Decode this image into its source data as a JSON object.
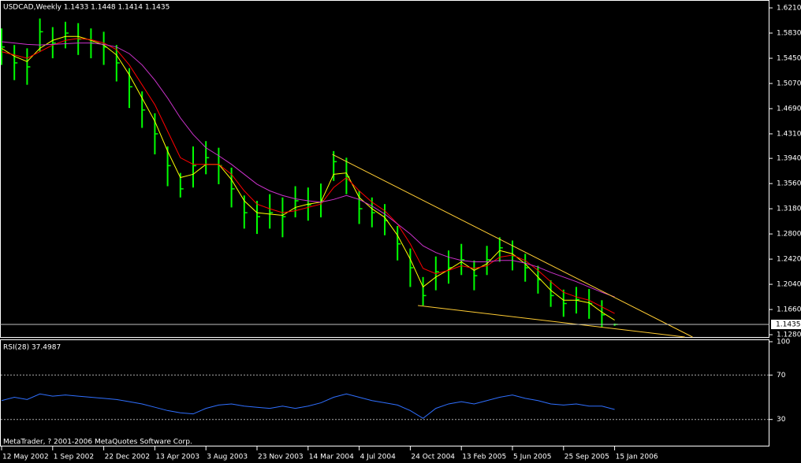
{
  "chart_data": [
    {
      "type": "hlc",
      "title": "USDCAD,Weekly  1.1433 1.1448 1.1414 1.1435",
      "categories": [
        "12 May 2002",
        null,
        null,
        null,
        "1 Sep 2002",
        null,
        null,
        null,
        "22 Dec 2002",
        null,
        null,
        null,
        "13 Apr 2003",
        null,
        null,
        null,
        "3 Aug 2003",
        null,
        null,
        null,
        "23 Nov 2003",
        null,
        null,
        null,
        "14 Mar 2004",
        null,
        null,
        null,
        "4 Jul 2004",
        null,
        null,
        null,
        "24 Oct 2004",
        null,
        null,
        null,
        "13 Feb 2005",
        null,
        null,
        null,
        "5 Jun 2005",
        null,
        null,
        null,
        "25 Sep 2005",
        null,
        null,
        null,
        "15 Jan 2006"
      ],
      "high": [
        1.59,
        1.565,
        1.56,
        1.605,
        1.592,
        1.6,
        1.598,
        1.59,
        1.585,
        1.565,
        1.53,
        1.495,
        1.462,
        1.412,
        1.372,
        1.412,
        1.42,
        1.41,
        1.38,
        1.338,
        1.33,
        1.34,
        1.335,
        1.352,
        1.35,
        1.356,
        1.405,
        1.395,
        1.345,
        1.335,
        1.325,
        1.292,
        1.258,
        1.215,
        1.246,
        1.255,
        1.265,
        1.24,
        1.262,
        1.275,
        1.27,
        1.25,
        1.232,
        1.21,
        1.196,
        1.2,
        1.197,
        1.18,
        1.1448
      ],
      "low": [
        1.535,
        1.512,
        1.505,
        1.555,
        1.545,
        1.56,
        1.55,
        1.545,
        1.535,
        1.51,
        1.47,
        1.44,
        1.4,
        1.352,
        1.335,
        1.35,
        1.37,
        1.355,
        1.32,
        1.288,
        1.28,
        1.288,
        1.275,
        1.305,
        1.3,
        1.305,
        1.36,
        1.34,
        1.295,
        1.29,
        1.278,
        1.24,
        1.2,
        1.172,
        1.195,
        1.205,
        1.218,
        1.195,
        1.218,
        1.238,
        1.225,
        1.208,
        1.19,
        1.17,
        1.155,
        1.16,
        1.152,
        1.14,
        1.1414
      ],
      "close": [
        1.562,
        1.538,
        1.532,
        1.585,
        1.568,
        1.583,
        1.574,
        1.568,
        1.562,
        1.538,
        1.502,
        1.467,
        1.431,
        1.383,
        1.348,
        1.383,
        1.395,
        1.383,
        1.348,
        1.312,
        1.306,
        1.312,
        1.306,
        1.33,
        1.324,
        1.33,
        1.389,
        1.366,
        1.318,
        1.312,
        1.3,
        1.265,
        1.229,
        1.187,
        1.223,
        1.229,
        1.241,
        1.217,
        1.241,
        1.259,
        1.247,
        1.229,
        1.211,
        1.187,
        1.175,
        1.181,
        1.175,
        1.158,
        1.1435
      ],
      "color": "#00ff00",
      "series": [
        {
          "color": "#ffff00",
          "values": [
            1.56,
            1.548,
            1.54,
            1.56,
            1.572,
            1.578,
            1.578,
            1.572,
            1.565,
            1.55,
            1.52,
            1.485,
            1.45,
            1.405,
            1.365,
            1.37,
            1.385,
            1.385,
            1.362,
            1.33,
            1.312,
            1.31,
            1.308,
            1.32,
            1.325,
            1.328,
            1.37,
            1.372,
            1.335,
            1.318,
            1.305,
            1.278,
            1.242,
            1.2,
            1.215,
            1.226,
            1.238,
            1.225,
            1.235,
            1.255,
            1.25,
            1.235,
            1.215,
            1.195,
            1.18,
            1.18,
            1.176,
            1.162,
            1.15
          ]
        },
        {
          "color": "#ff0000",
          "values": [
            1.555,
            1.55,
            1.545,
            1.555,
            1.565,
            1.572,
            1.575,
            1.573,
            1.568,
            1.558,
            1.535,
            1.505,
            1.475,
            1.435,
            1.395,
            1.385,
            1.385,
            1.385,
            1.37,
            1.345,
            1.325,
            1.318,
            1.312,
            1.315,
            1.32,
            1.325,
            1.35,
            1.365,
            1.345,
            1.328,
            1.315,
            1.295,
            1.265,
            1.228,
            1.22,
            1.225,
            1.232,
            1.228,
            1.232,
            1.245,
            1.248,
            1.24,
            1.225,
            1.208,
            1.192,
            1.185,
            1.18,
            1.17,
            1.16
          ]
        },
        {
          "color": "#cc33cc",
          "values": [
            1.57,
            1.568,
            1.566,
            1.565,
            1.566,
            1.567,
            1.568,
            1.568,
            1.566,
            1.562,
            1.552,
            1.535,
            1.512,
            1.485,
            1.455,
            1.43,
            1.41,
            1.398,
            1.385,
            1.37,
            1.355,
            1.345,
            1.338,
            1.333,
            1.33,
            1.328,
            1.332,
            1.338,
            1.332,
            1.322,
            1.31,
            1.295,
            1.28,
            1.262,
            1.252,
            1.245,
            1.24,
            1.238,
            1.238,
            1.24,
            1.24,
            1.236,
            1.23,
            1.222,
            1.215,
            1.208,
            1.2,
            1.192,
            1.185
          ]
        }
      ],
      "trendlines": [
        {
          "color": "#ffcc33",
          "x": [
            25.9,
            54.1
          ],
          "y": [
            1.4,
            1.1245
          ]
        },
        {
          "color": "#ffcc33",
          "x": [
            32.6,
            53.5
          ],
          "y": [
            1.172,
            1.1245
          ]
        }
      ],
      "current_price": 1.1435,
      "ylim": [
        1.1245,
        1.6329
      ],
      "yticks": [
        {
          "value": 1.621,
          "label": "1.6210"
        },
        {
          "value": 1.583,
          "label": "1.5830"
        },
        {
          "value": 1.545,
          "label": "1.5450"
        },
        {
          "value": 1.507,
          "label": "1.5070"
        },
        {
          "value": 1.469,
          "label": "1.4690"
        },
        {
          "value": 1.431,
          "label": "1.4310"
        },
        {
          "value": 1.394,
          "label": "1.3940"
        },
        {
          "value": 1.356,
          "label": "1.3560"
        },
        {
          "value": 1.318,
          "label": "1.3180"
        },
        {
          "value": 1.28,
          "label": "1.2800"
        },
        {
          "value": 1.242,
          "label": "1.2420"
        },
        {
          "value": 1.204,
          "label": "1.2040"
        },
        {
          "value": 1.166,
          "label": "1.1660"
        },
        {
          "value": 1.128,
          "label": "1.1280"
        }
      ]
    },
    {
      "type": "line",
      "title": "RSI(28) 37.4987",
      "series": [
        {
          "color": "#2f6fff",
          "values": [
            47,
            50,
            48,
            53,
            51,
            52,
            51,
            50,
            49,
            48,
            46,
            44,
            41,
            38,
            36,
            35,
            40,
            43,
            44,
            42,
            41,
            40,
            42,
            40,
            42,
            45,
            50,
            53,
            50,
            47,
            45,
            43,
            38,
            31,
            40,
            44,
            46,
            44,
            47,
            50,
            52,
            49,
            47,
            44,
            43,
            44,
            42,
            42,
            39
          ]
        }
      ],
      "ylim": [
        6.4,
        101.4
      ],
      "yticks": [
        100,
        70,
        30
      ],
      "levels": [
        70,
        30
      ],
      "footer": "MetaTrader, ? 2001-2006 MetaQuotes Software Corp."
    }
  ]
}
